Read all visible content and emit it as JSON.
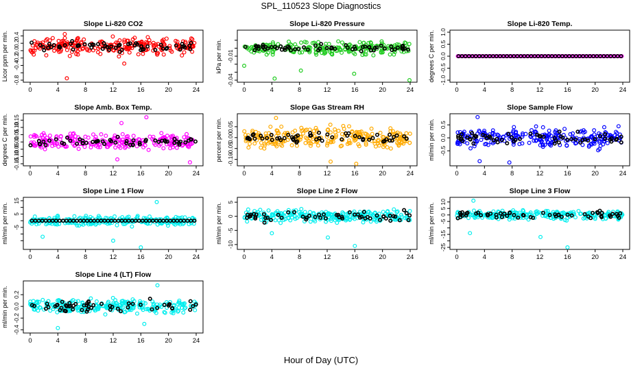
{
  "figure": {
    "title": "SPL_110523  Slope Diagnostics",
    "xlabel": "Hour of Day (UTC)"
  },
  "colors": {
    "red": "#ff0000",
    "green": "#22cc22",
    "magenta": "#ff00ff",
    "orange": "#ffaa00",
    "blue": "#0000ff",
    "cyan": "#00eeee",
    "black": "#000000"
  },
  "chart_data": [
    {
      "type": "scatter",
      "title": "Slope Li-820 CO2",
      "ylabel": "Licor ppm per min.",
      "xlim": [
        0,
        24
      ],
      "xticks": [
        0,
        4,
        8,
        12,
        16,
        20,
        24
      ],
      "ylim": [
        -0.8,
        0.5
      ],
      "yticks": [
        -0.8,
        -0.6,
        -0.4,
        -0.2,
        0.0,
        0.2,
        0.4
      ],
      "yticklabels": [
        "-0.8",
        "",
        "-0.4",
        "-0.2",
        "0.0",
        "0.2",
        "0.4"
      ],
      "color_key": "red",
      "series": [
        {
          "role": "all",
          "color_key": "red",
          "n": 240,
          "center": 0.12,
          "spread": 0.33,
          "outliers": [
            [
              5.3,
              -0.75
            ],
            [
              5.0,
              0.45
            ],
            [
              13.6,
              -0.35
            ]
          ]
        },
        {
          "role": "hourly",
          "color_key": "black",
          "n": 60,
          "center": 0.12,
          "spread": 0.18
        }
      ]
    },
    {
      "type": "scatter",
      "title": "Slope Li-820 Pressure",
      "ylabel": "kPa per min.",
      "xlim": [
        0,
        24
      ],
      "xticks": [
        0,
        4,
        8,
        12,
        16,
        20,
        24
      ],
      "ylim": [
        -0.04,
        0.02
      ],
      "yticks": [
        -0.04,
        -0.03,
        -0.02,
        -0.01,
        0.0,
        0.01
      ],
      "yticklabels": [
        "-0.04",
        "",
        "",
        "-0.01",
        "",
        ""
      ],
      "color_key": "green",
      "series": [
        {
          "role": "all",
          "color_key": "green",
          "n": 240,
          "center": 0.0,
          "spread": 0.011,
          "outliers": [
            [
              0.0,
              -0.022
            ],
            [
              8.2,
              -0.028
            ],
            [
              15.9,
              -0.032
            ],
            [
              23.9,
              -0.04
            ],
            [
              4.4,
              -0.038
            ]
          ]
        },
        {
          "role": "hourly",
          "color_key": "black",
          "n": 60,
          "center": 0.0,
          "spread": 0.006
        }
      ]
    },
    {
      "type": "scatter",
      "title": "Slope Li-820 Temp.",
      "ylabel": "degrees C per min.",
      "xlim": [
        0,
        24
      ],
      "xticks": [
        0,
        4,
        8,
        12,
        16,
        20,
        24
      ],
      "ylim": [
        -1.0,
        1.0
      ],
      "yticks": [
        -1.0,
        -0.5,
        0.0,
        0.5,
        1.0
      ],
      "yticklabels": [
        "-1.0",
        "-0.5",
        "0.0",
        "0.5",
        "1.0"
      ],
      "color_key": "magenta",
      "series": [
        {
          "role": "all",
          "color_key": "magenta",
          "n": 80,
          "center": 0.0,
          "spread": 0.0,
          "outliers": []
        },
        {
          "role": "hourly",
          "color_key": "black",
          "n": 48,
          "center": 0.0,
          "spread": 0.0
        }
      ]
    },
    {
      "type": "scatter",
      "title": "Slope Amb. Box Temp.",
      "ylabel": "degrees C per min.",
      "xlim": [
        0,
        24
      ],
      "xticks": [
        0,
        4,
        8,
        12,
        16,
        20,
        24
      ],
      "ylim": [
        -0.15,
        0.18
      ],
      "yticks": [
        -0.15,
        -0.1,
        -0.05,
        0.0,
        0.05,
        0.1,
        0.15
      ],
      "yticklabels": [
        "-0.15",
        "-0.10",
        "-0.05",
        "0.00",
        "0.05",
        "0.10",
        "0.15"
      ],
      "color_key": "magenta",
      "series": [
        {
          "role": "all",
          "color_key": "magenta",
          "n": 240,
          "center": 0.0,
          "spread": 0.08,
          "outliers": [
            [
              16.8,
              0.17
            ],
            [
              13.2,
              0.13
            ],
            [
              12.6,
              -0.12
            ],
            [
              23.1,
              -0.14
            ]
          ]
        },
        {
          "role": "hourly",
          "color_key": "black",
          "n": 55,
          "center": 0.0,
          "spread": 0.04
        }
      ]
    },
    {
      "type": "scatter",
      "title": "Slope Gas Stream RH",
      "ylabel": "percent per min.",
      "xlim": [
        0,
        24
      ],
      "xticks": [
        0,
        4,
        8,
        12,
        16,
        20,
        24
      ],
      "ylim": [
        -0.12,
        0.1
      ],
      "yticks": [
        -0.1,
        -0.05,
        0.0,
        0.05
      ],
      "yticklabels": [
        "-0.10",
        "-0.05",
        "0.00",
        "0.05"
      ],
      "color_key": "orange",
      "series": [
        {
          "role": "all",
          "color_key": "orange",
          "n": 260,
          "center": 0.0,
          "spread": 0.07,
          "outliers": [
            [
              4.6,
              0.09
            ],
            [
              16.2,
              -0.12
            ],
            [
              12.5,
              -0.11
            ]
          ]
        },
        {
          "role": "hourly",
          "color_key": "black",
          "n": 55,
          "center": 0.0,
          "spread": 0.035
        }
      ]
    },
    {
      "type": "scatter",
      "title": "Slope Sample Flow",
      "ylabel": "ml/min per min.",
      "xlim": [
        0,
        24
      ],
      "xticks": [
        0,
        4,
        8,
        12,
        16,
        20,
        24
      ],
      "ylim": [
        -1.0,
        0.85
      ],
      "yticks": [
        -0.5,
        0.0,
        0.5
      ],
      "yticklabels": [
        "-0.5",
        "0.0",
        "0.5"
      ],
      "color_key": "blue",
      "series": [
        {
          "role": "all",
          "color_key": "blue",
          "n": 260,
          "center": 0.0,
          "spread": 0.55,
          "outliers": [
            [
              3.0,
              0.8
            ],
            [
              7.6,
              -0.95
            ],
            [
              3.3,
              -0.9
            ]
          ]
        },
        {
          "role": "hourly",
          "color_key": "black",
          "n": 60,
          "center": 0.0,
          "spread": 0.3
        }
      ]
    },
    {
      "type": "scatter",
      "title": "Slope Line 1 Flow",
      "ylabel": "ml/min per min.",
      "xlim": [
        0,
        24
      ],
      "xticks": [
        0,
        4,
        8,
        12,
        16,
        20,
        24
      ],
      "ylim": [
        -20,
        16
      ],
      "yticks": [
        -15,
        -10,
        -5,
        0,
        5,
        10,
        15
      ],
      "yticklabels": [
        "",
        "",
        "-5",
        "",
        "5",
        "",
        "15"
      ],
      "color_key": "cyan",
      "series": [
        {
          "role": "all",
          "color_key": "cyan",
          "n": 240,
          "center": 0.0,
          "spread": 5.0,
          "outliers": [
            [
              16.0,
              -20.0
            ],
            [
              12.0,
              -15.0
            ],
            [
              18.3,
              14.0
            ],
            [
              1.8,
              -12.0
            ]
          ]
        },
        {
          "role": "hourly",
          "color_key": "black",
          "n": 48,
          "center": 0.0,
          "spread": 0.0
        }
      ]
    },
    {
      "type": "scatter",
      "title": "Slope Line 2 Flow",
      "ylabel": "ml/min per min.",
      "xlim": [
        0,
        24
      ],
      "xticks": [
        0,
        4,
        8,
        12,
        16,
        20,
        24
      ],
      "ylim": [
        -11,
        6
      ],
      "yticks": [
        -10,
        -5,
        0,
        5
      ],
      "yticklabels": [
        "-10",
        "-5",
        "0",
        "5"
      ],
      "color_key": "cyan",
      "series": [
        {
          "role": "all",
          "color_key": "cyan",
          "n": 260,
          "center": 0.0,
          "spread": 3.0,
          "outliers": [
            [
              16.0,
              -10.5
            ],
            [
              12.1,
              -7.5
            ],
            [
              4.0,
              -6.0
            ]
          ]
        },
        {
          "role": "hourly",
          "color_key": "black",
          "n": 55,
          "center": 0.0,
          "spread": 2.8
        }
      ]
    },
    {
      "type": "scatter",
      "title": "Slope Line 3 Flow",
      "ylabel": "ml/min per min.",
      "xlim": [
        0,
        24
      ],
      "xticks": [
        0,
        4,
        8,
        12,
        16,
        20,
        24
      ],
      "ylim": [
        -25,
        12
      ],
      "yticks": [
        -25,
        -20,
        -15,
        -10,
        -5,
        0,
        5,
        10
      ],
      "yticklabels": [
        "-25",
        "",
        "-15",
        "",
        "-5",
        "0",
        "5",
        "10"
      ],
      "color_key": "cyan",
      "series": [
        {
          "role": "all",
          "color_key": "cyan",
          "n": 260,
          "center": 0.0,
          "spread": 5.0,
          "outliers": [
            [
              16.0,
              -25.0
            ],
            [
              12.1,
              -17.0
            ],
            [
              1.9,
              -14.0
            ],
            [
              2.4,
              11.0
            ]
          ]
        },
        {
          "role": "hourly",
          "color_key": "black",
          "n": 55,
          "center": 0.0,
          "spread": 4.0
        }
      ]
    },
    {
      "type": "scatter",
      "title": "Slope Line 4 (LT) Flow",
      "ylabel": "ml/min per min.",
      "xlim": [
        0,
        24
      ],
      "xticks": [
        0,
        4,
        8,
        12,
        16,
        20,
        24
      ],
      "ylim": [
        -0.42,
        0.4
      ],
      "yticks": [
        -0.4,
        -0.2,
        0.0,
        0.2
      ],
      "yticklabels": [
        "-0.4",
        "-0.2",
        "0.0",
        "0.2"
      ],
      "color_key": "cyan",
      "series": [
        {
          "role": "all",
          "color_key": "cyan",
          "n": 260,
          "center": 0.0,
          "spread": 0.17,
          "outliers": [
            [
              18.4,
              0.36
            ],
            [
              4.0,
              -0.37
            ],
            [
              16.5,
              -0.3
            ]
          ]
        },
        {
          "role": "hourly",
          "color_key": "black",
          "n": 55,
          "center": 0.0,
          "spread": 0.15
        }
      ]
    }
  ]
}
